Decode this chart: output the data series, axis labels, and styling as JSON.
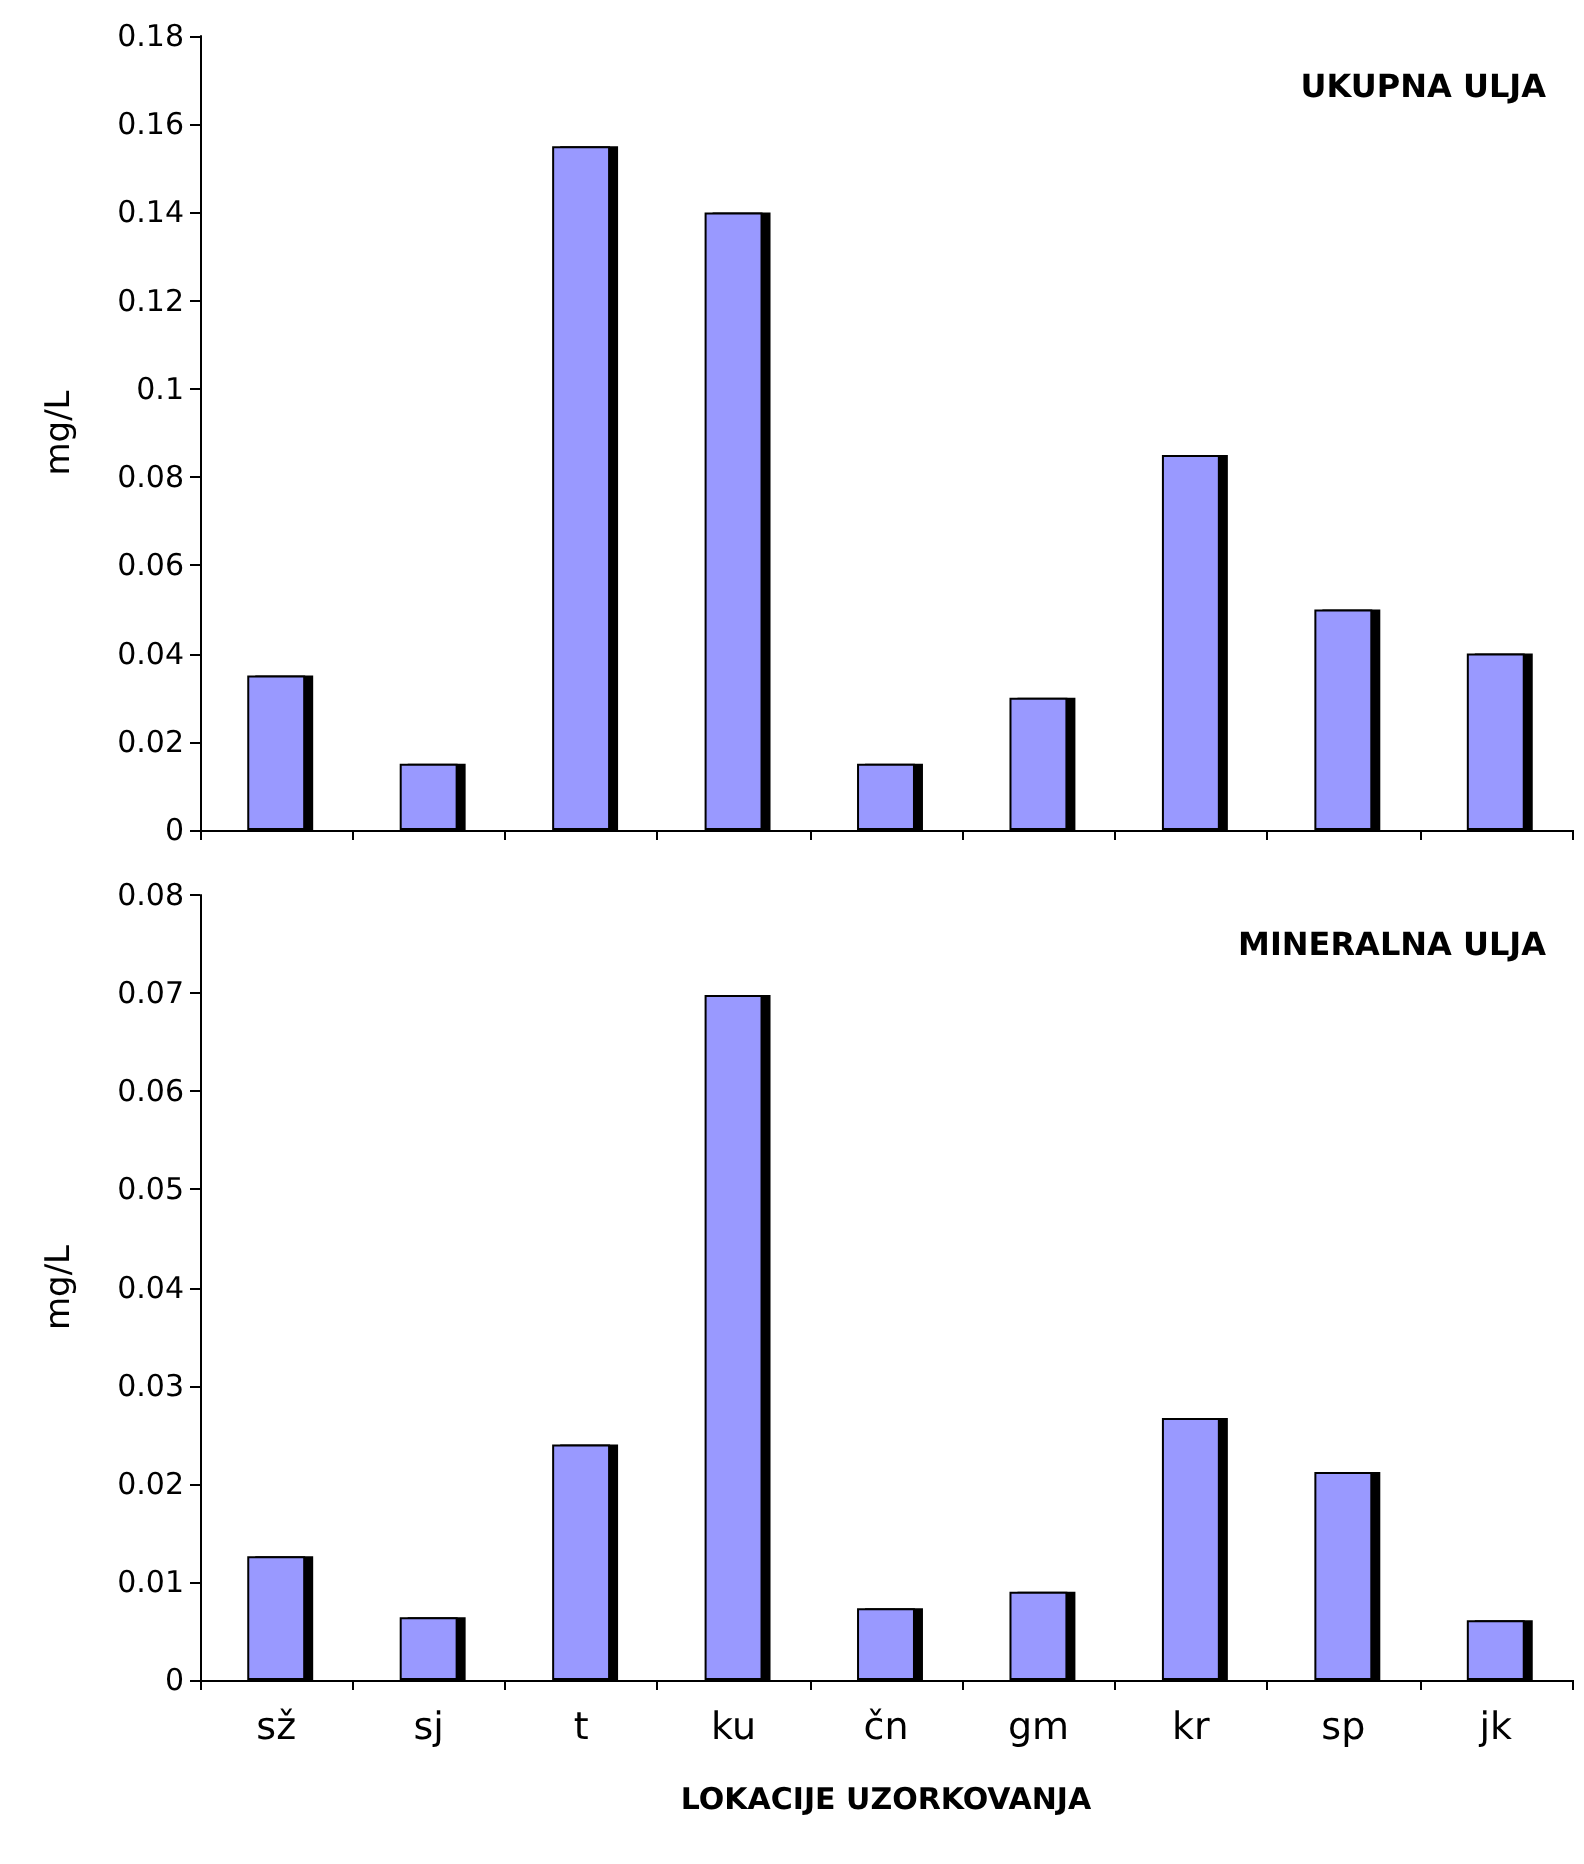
{
  "chart_data": [
    {
      "type": "bar",
      "title": "UKUPNA ULJA",
      "ylabel": "mg/L",
      "categories": [
        null,
        null,
        null,
        null,
        null,
        null,
        null,
        null,
        null
      ],
      "values": [
        0.035,
        0.015,
        0.155,
        0.14,
        0.015,
        0.03,
        0.085,
        0.05,
        0.04
      ],
      "color": "#9999ff",
      "ylim": [
        0,
        0.18
      ],
      "yticks": [
        0,
        0.02,
        0.04,
        0.06,
        0.08,
        0.1,
        0.12,
        0.14,
        0.16,
        0.18
      ],
      "grid": false,
      "tick_labels": "y"
    },
    {
      "type": "bar",
      "title": "MINERALNA ULJA",
      "ylabel": "mg/L",
      "xlabel": "LOKACIJE UZORKOVANJA",
      "categories": [
        "sž",
        "sj",
        "t",
        "ku",
        "čn",
        "gm",
        "kr",
        "sp",
        "jk"
      ],
      "values": [
        0.0126,
        0.0064,
        0.024,
        0.0698,
        0.0073,
        0.009,
        0.0267,
        0.0212,
        0.0061
      ],
      "color": "#9999ff",
      "ylim": [
        0,
        0.08
      ],
      "yticks": [
        0,
        0.01,
        0.02,
        0.03,
        0.04,
        0.05,
        0.06,
        0.07,
        0.08
      ],
      "grid": false
    }
  ]
}
